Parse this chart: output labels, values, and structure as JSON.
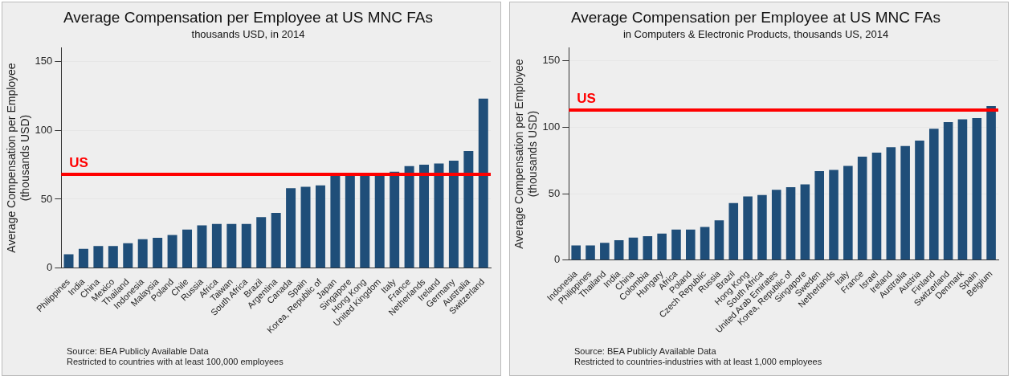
{
  "chart_data": [
    {
      "type": "bar",
      "title": "Average Compensation per Employee at US MNC FAs",
      "subtitle": "thousands USD, in 2014",
      "ylabel": "Average Compensation per Employee\n(thousands USD)",
      "categories": [
        "Philippines",
        "India",
        "China",
        "Mexico",
        "Thailand",
        "Indonesia",
        "Malaysia",
        "Poland",
        "Chile",
        "Russia",
        "Africa",
        "Taiwan",
        "South Africa",
        "Brazil",
        "Argentina",
        "Canada",
        "Spain",
        "Korea, Republic of",
        "Japan",
        "Singapore",
        "Hong Kong",
        "United Kingdom",
        "Italy",
        "France",
        "Netherlands",
        "Ireland",
        "Germany",
        "Australia",
        "Switzerland"
      ],
      "values": [
        10,
        14,
        16,
        16,
        18,
        21,
        22,
        24,
        28,
        31,
        32,
        32,
        32,
        37,
        40,
        58,
        59,
        60,
        67,
        67,
        67,
        68,
        70,
        74,
        75,
        76,
        78,
        85,
        123
      ],
      "color": "#1f4e79",
      "ylim": [
        0,
        160
      ],
      "yticks": [
        0,
        50,
        100,
        150
      ],
      "grid": "y",
      "ref_lines": [
        {
          "axis": "y",
          "value": 68,
          "label": "US",
          "color": "#ff0000"
        }
      ],
      "annotations": [
        "Source: BEA Publicly Available Data",
        "Restricted to countries with at least 100,000 employees"
      ]
    },
    {
      "type": "bar",
      "title": "Average Compensation per Employee at US MNC FAs",
      "subtitle": "in Computers & Electronic Products, thousands US, 2014",
      "ylabel": "Average Compensation per Employee\n(thousands USD)",
      "categories": [
        "Indonesia",
        "Philippines",
        "Thailand",
        "India",
        "China",
        "Colombia",
        "Hungary",
        "Africa",
        "Poland",
        "Czech Republic",
        "Russia",
        "Brazil",
        "Hong Kong",
        "South Africa",
        "United Arab Emirates",
        "Korea, Republic of",
        "Singapore",
        "Sweden",
        "Netherlands",
        "Italy",
        "France",
        "Israel",
        "Ireland",
        "Australia",
        "Austria",
        "Finland",
        "Switzerland",
        "Denmark",
        "Spain",
        "Belgium"
      ],
      "values": [
        11,
        11,
        13,
        15,
        17,
        18,
        20,
        23,
        23,
        25,
        30,
        43,
        48,
        49,
        53,
        55,
        57,
        67,
        68,
        71,
        78,
        81,
        85,
        86,
        90,
        99,
        104,
        106,
        107,
        116
      ],
      "color": "#1f4e79",
      "ylim": [
        0,
        160
      ],
      "yticks": [
        0,
        50,
        100,
        150
      ],
      "grid": "y",
      "ref_lines": [
        {
          "axis": "y",
          "value": 113,
          "label": "US",
          "color": "#ff0000"
        }
      ],
      "annotations": [
        "Source: BEA Publicly Available Data",
        "Restricted to countries-industries with at least 1,000 employees"
      ]
    }
  ]
}
